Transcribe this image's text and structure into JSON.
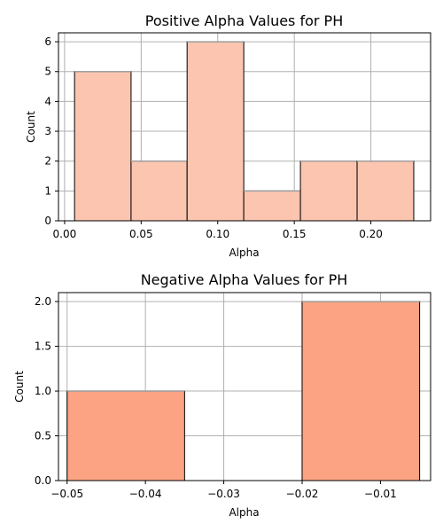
{
  "chart_data": [
    {
      "type": "bar",
      "title": "Positive Alpha Values for PH",
      "xlabel": "Alpha",
      "ylabel": "Count",
      "xlim": [
        -0.004,
        0.239
      ],
      "ylim": [
        0,
        6.3
      ],
      "xticks": [
        0.0,
        0.05,
        0.1,
        0.15,
        0.2
      ],
      "xtick_labels": [
        "0.00",
        "0.05",
        "0.10",
        "0.15",
        "0.20"
      ],
      "yticks": [
        0,
        1,
        2,
        3,
        4,
        5,
        6
      ],
      "ytick_labels": [
        "0",
        "1",
        "2",
        "3",
        "4",
        "5",
        "6"
      ],
      "grid": true,
      "bar_color": "#fcc5b0",
      "edge_color": "#000000",
      "bins": [
        {
          "x0": 0.0065,
          "x1": 0.0434,
          "count": 5
        },
        {
          "x0": 0.0434,
          "x1": 0.08,
          "count": 2
        },
        {
          "x0": 0.08,
          "x1": 0.117,
          "count": 6
        },
        {
          "x0": 0.117,
          "x1": 0.154,
          "count": 1
        },
        {
          "x0": 0.154,
          "x1": 0.191,
          "count": 2
        },
        {
          "x0": 0.191,
          "x1": 0.228,
          "count": 2
        }
      ]
    },
    {
      "type": "bar",
      "title": "Negative Alpha Values for PH",
      "xlabel": "Alpha",
      "ylabel": "Count",
      "xlim": [
        -0.0511,
        -0.0036
      ],
      "ylim": [
        0,
        2.1
      ],
      "xticks": [
        -0.05,
        -0.04,
        -0.03,
        -0.02,
        -0.01
      ],
      "xtick_labels": [
        "−0.05",
        "−0.04",
        "−0.03",
        "−0.02",
        "−0.01"
      ],
      "yticks": [
        0.0,
        0.5,
        1.0,
        1.5,
        2.0
      ],
      "ytick_labels": [
        "0.0",
        "0.5",
        "1.0",
        "1.5",
        "2.0"
      ],
      "grid": true,
      "bar_color": "#fca383",
      "edge_color": "#000000",
      "bins": [
        {
          "x0": -0.05,
          "x1": -0.035,
          "count": 1
        },
        {
          "x0": -0.035,
          "x1": -0.02,
          "count": 0
        },
        {
          "x0": -0.02,
          "x1": -0.005,
          "count": 2
        }
      ]
    }
  ]
}
